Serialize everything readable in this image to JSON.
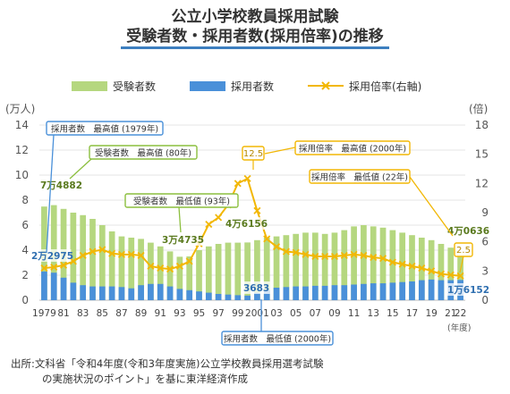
{
  "title_line1": "公立小学校教員採用試験",
  "title_line2": "受験者数・採用者数(採用倍率)の推移",
  "legend": {
    "applicants": "受験者数",
    "hired": "採用者数",
    "ratio": "採用倍率(右軸)"
  },
  "colors": {
    "applicants": "#b5d77f",
    "hired": "#4a90d9",
    "ratio": "#f2b705",
    "callout_blue": "#4a90d9",
    "callout_green": "#8cbf3f",
    "callout_yellow": "#f2b705",
    "grid": "#e5e5e5"
  },
  "chart_data": {
    "type": "bar",
    "y_left_unit": "(万人)",
    "y_right_unit": "(倍)",
    "x_unit": "(年度)",
    "ylim_left": [
      0,
      14
    ],
    "ylim_right": [
      0,
      18
    ],
    "yticks_left": [
      "0",
      "2",
      "4",
      "6",
      "8",
      "10",
      "12",
      "14"
    ],
    "yticks_right": [
      "0",
      "3",
      "6",
      "9",
      "12",
      "15",
      "18"
    ],
    "xtick_labels": [
      "1979",
      "81",
      "83",
      "85",
      "87",
      "89",
      "91",
      "93",
      "95",
      "97",
      "99",
      "2001",
      "03",
      "05",
      "07",
      "09",
      "11",
      "13",
      "15",
      "17",
      "19",
      "21",
      "22"
    ],
    "years": [
      1979,
      1980,
      1981,
      1982,
      1983,
      1984,
      1985,
      1986,
      1987,
      1988,
      1989,
      1990,
      1991,
      1992,
      1993,
      1994,
      1995,
      1996,
      1997,
      1998,
      1999,
      2000,
      2001,
      2002,
      2003,
      2004,
      2005,
      2006,
      2007,
      2008,
      2009,
      2010,
      2011,
      2012,
      2013,
      2014,
      2015,
      2016,
      2017,
      2018,
      2019,
      2020,
      2021,
      2022
    ],
    "series": [
      {
        "name": "受験者数",
        "type": "bar",
        "values": [
          7.4882,
          7.6,
          7.3,
          7.0,
          6.8,
          6.5,
          6.0,
          5.5,
          5.1,
          5.0,
          4.9,
          4.6,
          4.3,
          3.9,
          3.4735,
          3.5,
          4.0,
          4.3,
          4.5,
          4.6,
          4.6,
          4.6156,
          4.8,
          5.0,
          5.1,
          5.2,
          5.3,
          5.4,
          5.4,
          5.3,
          5.4,
          5.6,
          5.9,
          6.0,
          5.9,
          5.8,
          5.6,
          5.4,
          5.2,
          5.0,
          4.8,
          4.5,
          4.2,
          4.0636
        ]
      },
      {
        "name": "採用者数",
        "type": "bar",
        "values": [
          2.2975,
          2.2,
          1.8,
          1.4,
          1.2,
          1.1,
          1.1,
          1.1,
          1.05,
          0.95,
          1.2,
          1.3,
          1.3,
          1.1,
          0.9,
          0.8,
          0.7,
          0.6,
          0.5,
          0.45,
          0.4,
          0.3683,
          0.6,
          0.8,
          1.0,
          1.05,
          1.1,
          1.1,
          1.15,
          1.15,
          1.2,
          1.2,
          1.25,
          1.3,
          1.35,
          1.35,
          1.4,
          1.45,
          1.5,
          1.6,
          1.65,
          1.6,
          1.6,
          1.6152
        ]
      },
      {
        "name": "採用倍率(右軸)",
        "type": "line",
        "values": [
          3.3,
          3.4,
          3.6,
          4.0,
          4.6,
          5.0,
          5.2,
          4.8,
          4.7,
          4.7,
          4.6,
          3.5,
          3.3,
          3.2,
          3.5,
          4.0,
          5.8,
          7.8,
          8.5,
          9.8,
          12.0,
          12.5,
          9.2,
          6.3,
          5.5,
          5.0,
          4.9,
          4.7,
          4.5,
          4.5,
          4.5,
          4.6,
          4.7,
          4.6,
          4.4,
          4.3,
          3.9,
          3.7,
          3.5,
          3.3,
          3.0,
          2.7,
          2.6,
          2.5
        ]
      }
    ],
    "data_labels": [
      {
        "text": "7万4882",
        "color": "green"
      },
      {
        "text": "2万2975",
        "color": "blue"
      },
      {
        "text": "3万4735",
        "color": "green"
      },
      {
        "text": "4万6156",
        "color": "green"
      },
      {
        "text": "3683",
        "color": "blue"
      },
      {
        "text": "4万0636",
        "color": "green"
      },
      {
        "text": "1万6152",
        "color": "blue"
      }
    ],
    "callouts": [
      {
        "text": "採用者数　最高値 (1979年)",
        "color": "blue"
      },
      {
        "text": "受験者数　最高値 (80年)",
        "color": "green"
      },
      {
        "text": "受験者数　最低値 (93年)",
        "color": "green"
      },
      {
        "text": "採用倍率　最高値 (2000年)",
        "color": "yellow"
      },
      {
        "text": "採用倍率　最低値 (22年)",
        "color": "yellow"
      },
      {
        "text": "採用者数　最低値 (2000年)",
        "color": "blue"
      }
    ],
    "ratio_peak_label": "12.5",
    "ratio_low_label": "2.5"
  },
  "source_line1": "出所:文科省「令和4年度(令和3年度実施)公立学校教員採用選考試験",
  "source_line2": "の実施状況のポイント」を基に東洋経済作成"
}
